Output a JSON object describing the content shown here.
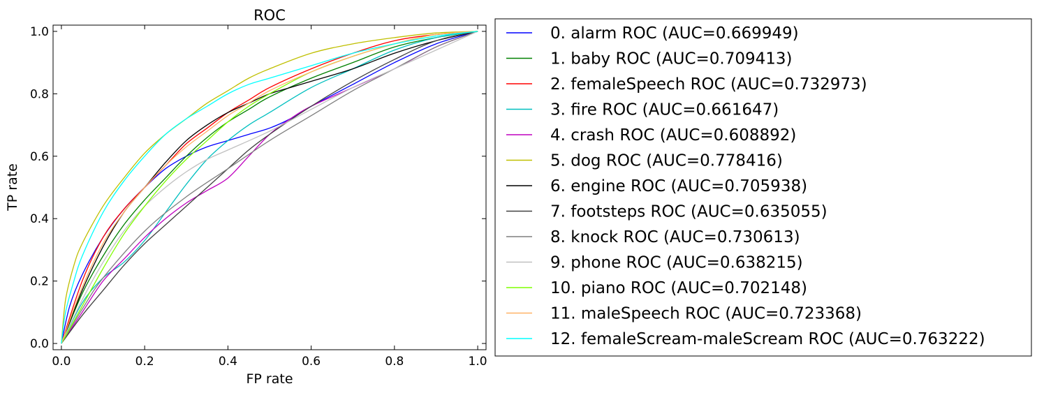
{
  "chart_data": {
    "type": "line",
    "title": "ROC",
    "xlabel": "FP rate",
    "ylabel": "TP rate",
    "xlim": [
      -0.02,
      1.02
    ],
    "ylim": [
      -0.02,
      1.02
    ],
    "xticks": [
      0.0,
      0.2,
      0.4,
      0.6,
      0.8,
      1.0
    ],
    "xtick_labels": [
      "0.0",
      "0.2",
      "0.4",
      "0.6",
      "0.8",
      "1.0"
    ],
    "yticks": [
      0.0,
      0.2,
      0.4,
      0.6,
      0.8,
      1.0
    ],
    "ytick_labels": [
      "0.0",
      "0.2",
      "0.4",
      "0.6",
      "0.8",
      "1.0"
    ],
    "grid": false,
    "legend_position": "outside-right",
    "series": [
      {
        "name": "0. alarm ROC (AUC=0.669949)",
        "color": "#0000ff",
        "x": [
          0,
          0.02,
          0.05,
          0.1,
          0.15,
          0.2,
          0.25,
          0.3,
          0.35,
          0.4,
          0.45,
          0.5,
          0.55,
          0.6,
          0.7,
          0.8,
          0.9,
          1.0
        ],
        "y": [
          0,
          0.12,
          0.22,
          0.34,
          0.43,
          0.5,
          0.56,
          0.6,
          0.63,
          0.65,
          0.67,
          0.69,
          0.72,
          0.76,
          0.83,
          0.9,
          0.96,
          1.0
        ]
      },
      {
        "name": "1. baby ROC (AUC=0.709413)",
        "color": "#008000",
        "x": [
          0,
          0.05,
          0.1,
          0.15,
          0.2,
          0.25,
          0.3,
          0.35,
          0.4,
          0.45,
          0.5,
          0.6,
          0.7,
          0.8,
          0.9,
          1.0
        ],
        "y": [
          0,
          0.16,
          0.28,
          0.38,
          0.46,
          0.53,
          0.6,
          0.66,
          0.71,
          0.75,
          0.79,
          0.85,
          0.9,
          0.95,
          0.98,
          1.0
        ]
      },
      {
        "name": "2. femaleSpeech ROC (AUC=0.732973)",
        "color": "#ff0000",
        "x": [
          0,
          0.05,
          0.1,
          0.15,
          0.2,
          0.25,
          0.3,
          0.35,
          0.4,
          0.45,
          0.5,
          0.6,
          0.7,
          0.8,
          0.9,
          1.0
        ],
        "y": [
          0,
          0.2,
          0.34,
          0.43,
          0.5,
          0.57,
          0.64,
          0.69,
          0.74,
          0.78,
          0.82,
          0.88,
          0.93,
          0.97,
          0.99,
          1.0
        ]
      },
      {
        "name": "3. fire ROC (AUC=0.661647)",
        "color": "#00bfbf",
        "x": [
          0,
          0.05,
          0.1,
          0.15,
          0.2,
          0.25,
          0.3,
          0.35,
          0.4,
          0.45,
          0.5,
          0.6,
          0.7,
          0.8,
          0.9,
          1.0
        ],
        "y": [
          0,
          0.13,
          0.21,
          0.26,
          0.33,
          0.42,
          0.51,
          0.59,
          0.65,
          0.7,
          0.74,
          0.82,
          0.88,
          0.94,
          0.98,
          1.0
        ]
      },
      {
        "name": "4. crash ROC (AUC=0.608892)",
        "color": "#bf00bf",
        "x": [
          0,
          0.05,
          0.1,
          0.15,
          0.2,
          0.25,
          0.3,
          0.35,
          0.4,
          0.45,
          0.5,
          0.55,
          0.6,
          0.7,
          0.8,
          0.9,
          1.0
        ],
        "y": [
          0,
          0.1,
          0.2,
          0.27,
          0.34,
          0.4,
          0.45,
          0.49,
          0.53,
          0.6,
          0.67,
          0.72,
          0.76,
          0.82,
          0.88,
          0.95,
          1.0
        ]
      },
      {
        "name": "5. dog ROC (AUC=0.778416)",
        "color": "#bfbf00",
        "x": [
          0,
          0.01,
          0.03,
          0.05,
          0.1,
          0.15,
          0.2,
          0.25,
          0.3,
          0.35,
          0.4,
          0.45,
          0.5,
          0.6,
          0.7,
          0.8,
          0.9,
          1.0
        ],
        "y": [
          0,
          0.14,
          0.25,
          0.32,
          0.44,
          0.53,
          0.61,
          0.67,
          0.72,
          0.77,
          0.81,
          0.85,
          0.88,
          0.93,
          0.96,
          0.98,
          0.995,
          1.0
        ]
      },
      {
        "name": "6. engine ROC (AUC=0.705938)",
        "color": "#000000",
        "x": [
          0,
          0.05,
          0.1,
          0.15,
          0.2,
          0.25,
          0.3,
          0.35,
          0.4,
          0.45,
          0.5,
          0.55,
          0.6,
          0.7,
          0.8,
          0.9,
          1.0
        ],
        "y": [
          0,
          0.17,
          0.31,
          0.42,
          0.5,
          0.58,
          0.65,
          0.7,
          0.74,
          0.77,
          0.8,
          0.82,
          0.84,
          0.88,
          0.93,
          0.97,
          1.0
        ]
      },
      {
        "name": "7. footsteps ROC (AUC=0.635055)",
        "color": "#404040",
        "x": [
          0,
          0.05,
          0.1,
          0.15,
          0.2,
          0.25,
          0.3,
          0.35,
          0.4,
          0.45,
          0.5,
          0.6,
          0.7,
          0.8,
          0.9,
          1.0
        ],
        "y": [
          0,
          0.09,
          0.17,
          0.25,
          0.32,
          0.38,
          0.44,
          0.5,
          0.56,
          0.62,
          0.67,
          0.76,
          0.84,
          0.91,
          0.97,
          1.0
        ]
      },
      {
        "name": "8. knock ROC (AUC=0.730613)",
        "color": "#7f7f7f",
        "x": [
          0,
          0.05,
          0.1,
          0.2,
          0.3,
          0.4,
          0.5,
          0.6,
          0.7,
          0.8,
          0.9,
          1.0
        ],
        "y": [
          0,
          0.11,
          0.21,
          0.36,
          0.47,
          0.56,
          0.65,
          0.73,
          0.81,
          0.88,
          0.95,
          1.0
        ]
      },
      {
        "name": "9. phone ROC (AUC=0.638215)",
        "color": "#c0c0c0",
        "x": [
          0,
          0.05,
          0.1,
          0.15,
          0.2,
          0.25,
          0.3,
          0.35,
          0.4,
          0.5,
          0.6,
          0.7,
          0.8,
          0.9,
          1.0
        ],
        "y": [
          0,
          0.14,
          0.26,
          0.36,
          0.44,
          0.5,
          0.55,
          0.59,
          0.62,
          0.68,
          0.75,
          0.82,
          0.88,
          0.94,
          1.0
        ]
      },
      {
        "name": "10. piano ROC (AUC=0.702148)",
        "color": "#7fff00",
        "x": [
          0,
          0.05,
          0.1,
          0.15,
          0.2,
          0.25,
          0.3,
          0.35,
          0.4,
          0.45,
          0.5,
          0.6,
          0.7,
          0.8,
          0.9,
          1.0
        ],
        "y": [
          0,
          0.12,
          0.24,
          0.35,
          0.44,
          0.52,
          0.59,
          0.65,
          0.71,
          0.76,
          0.8,
          0.87,
          0.92,
          0.96,
          0.99,
          1.0
        ]
      },
      {
        "name": "11. maleSpeech ROC (AUC=0.723368)",
        "color": "#ffb266",
        "x": [
          0,
          0.05,
          0.1,
          0.15,
          0.2,
          0.25,
          0.3,
          0.35,
          0.4,
          0.45,
          0.5,
          0.6,
          0.7,
          0.8,
          0.9,
          1.0
        ],
        "y": [
          0,
          0.18,
          0.32,
          0.42,
          0.5,
          0.57,
          0.63,
          0.68,
          0.73,
          0.77,
          0.81,
          0.87,
          0.92,
          0.96,
          0.99,
          1.0
        ]
      },
      {
        "name": "12. femaleScream-maleScream ROC (AUC=0.763222)",
        "color": "#00ffff",
        "x": [
          0,
          0.01,
          0.03,
          0.05,
          0.1,
          0.15,
          0.2,
          0.25,
          0.3,
          0.35,
          0.4,
          0.45,
          0.5,
          0.6,
          0.7,
          0.8,
          0.9,
          1.0
        ],
        "y": [
          0,
          0.1,
          0.2,
          0.28,
          0.42,
          0.52,
          0.6,
          0.67,
          0.72,
          0.76,
          0.8,
          0.83,
          0.85,
          0.89,
          0.93,
          0.96,
          0.985,
          1.0
        ]
      }
    ]
  }
}
